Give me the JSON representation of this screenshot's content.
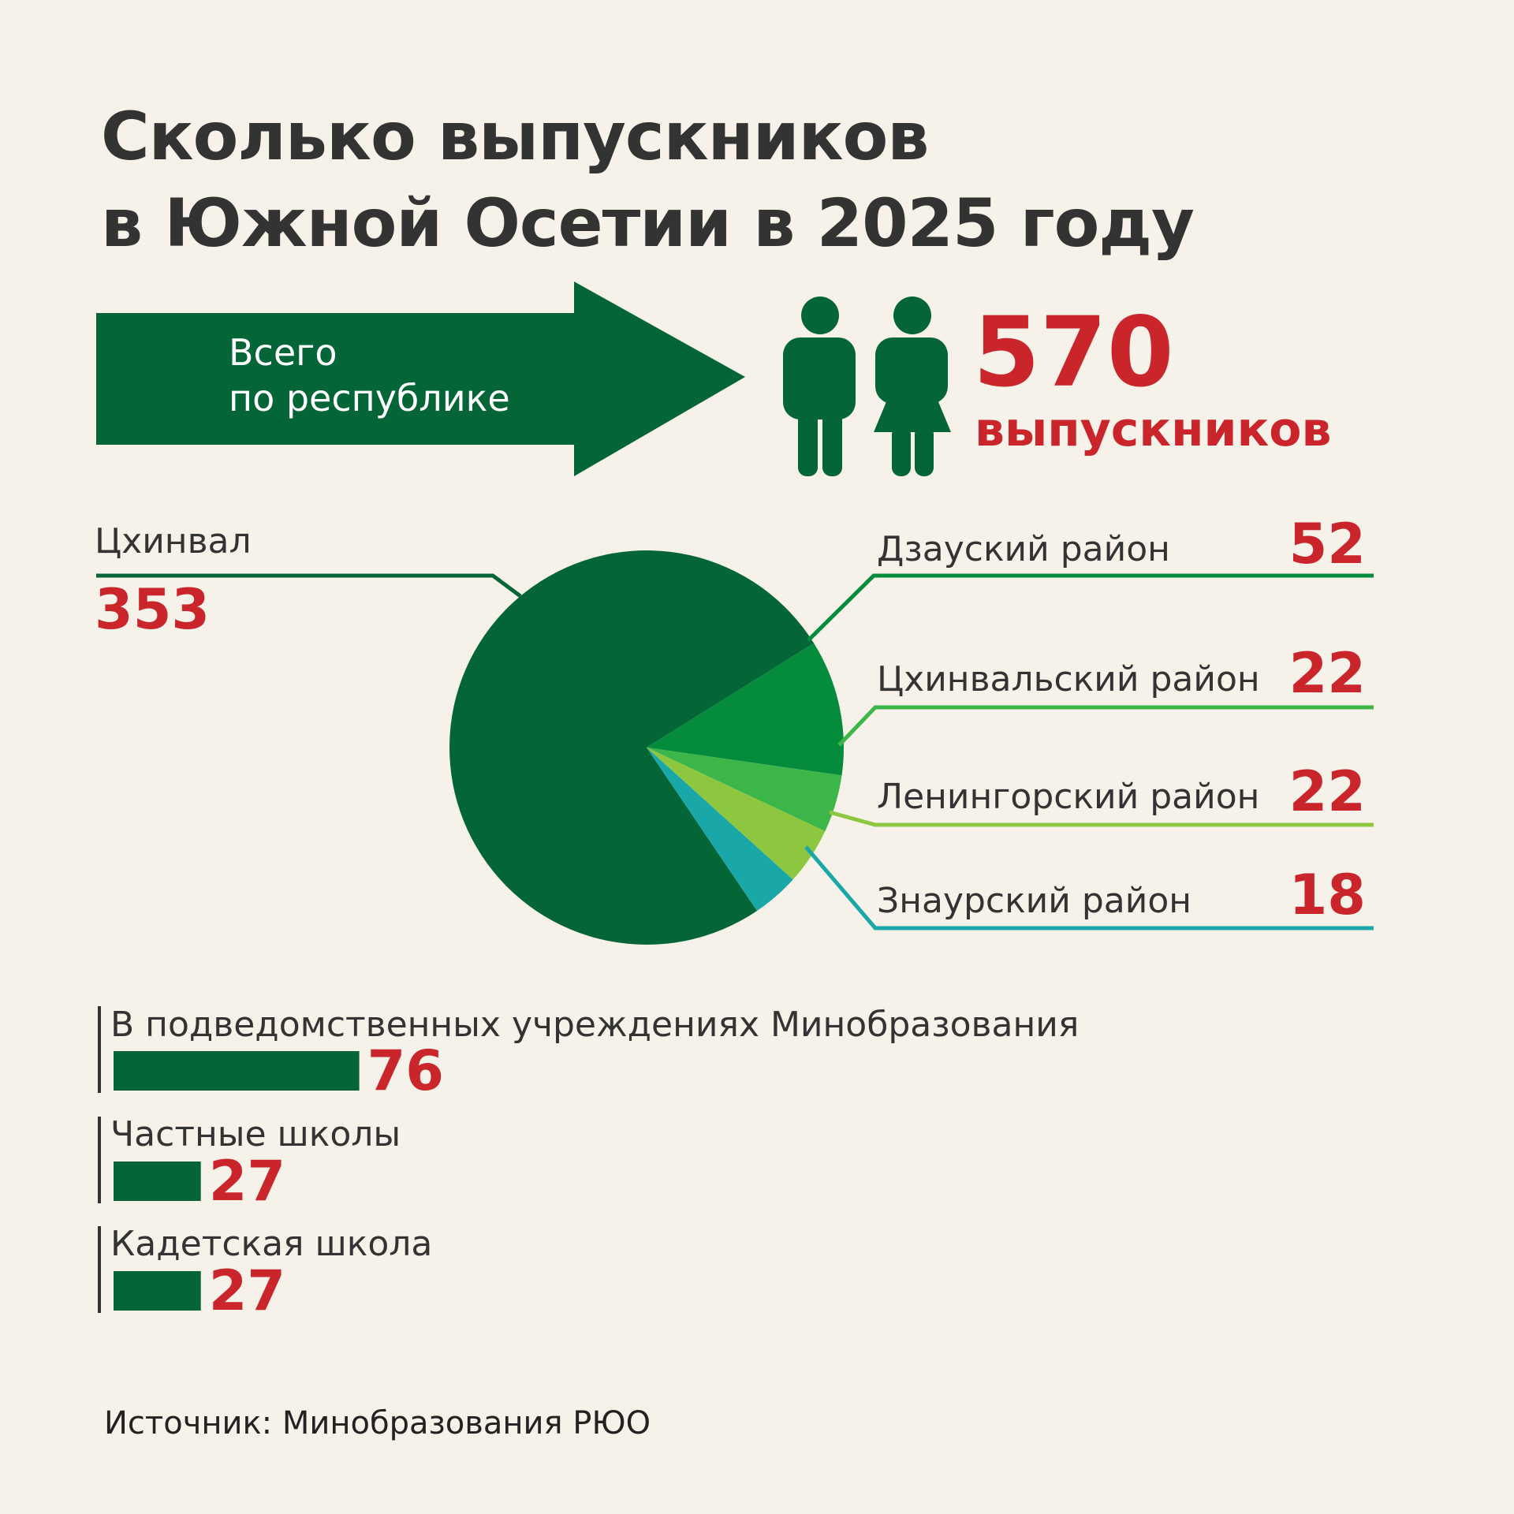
{
  "title_line1": "Сколько выпускников",
  "title_line2": "в Южной Осетии в 2025 году",
  "arrow_line1": "Всего",
  "arrow_line2": "по республике",
  "total_value": "570",
  "total_unit": "выпускников",
  "colors": {
    "dark_green": "#046637",
    "mid_green": "#048c3c",
    "light_green": "#3db649",
    "lime_green": "#8dc63f",
    "teal": "#1aa7a7",
    "red": "#c9252b",
    "background": "#f6f1e9"
  },
  "icons": [
    "male-person-icon",
    "female-person-icon"
  ],
  "chart_data": [
    {
      "type": "pie",
      "title": "",
      "slices": [
        {
          "label": "Цхинвал",
          "value": 353,
          "color": "#046637"
        },
        {
          "label": "Дзауский район",
          "value": 52,
          "color": "#048c3c"
        },
        {
          "label": "Цхинвальский район",
          "value": 22,
          "color": "#3db649"
        },
        {
          "label": "Ленингорский район",
          "value": 22,
          "color": "#8dc63f"
        },
        {
          "label": "Знаурский район",
          "value": 18,
          "color": "#1aa7a7"
        }
      ]
    },
    {
      "type": "bar",
      "orientation": "horizontal",
      "categories": [
        "В подведомственных учреждениях Минобразования",
        "Частные школы",
        "Кадетская школа"
      ],
      "values": [
        76,
        27,
        27
      ],
      "color": "#046637"
    }
  ],
  "source": "Источник: Минобразования РЮО"
}
